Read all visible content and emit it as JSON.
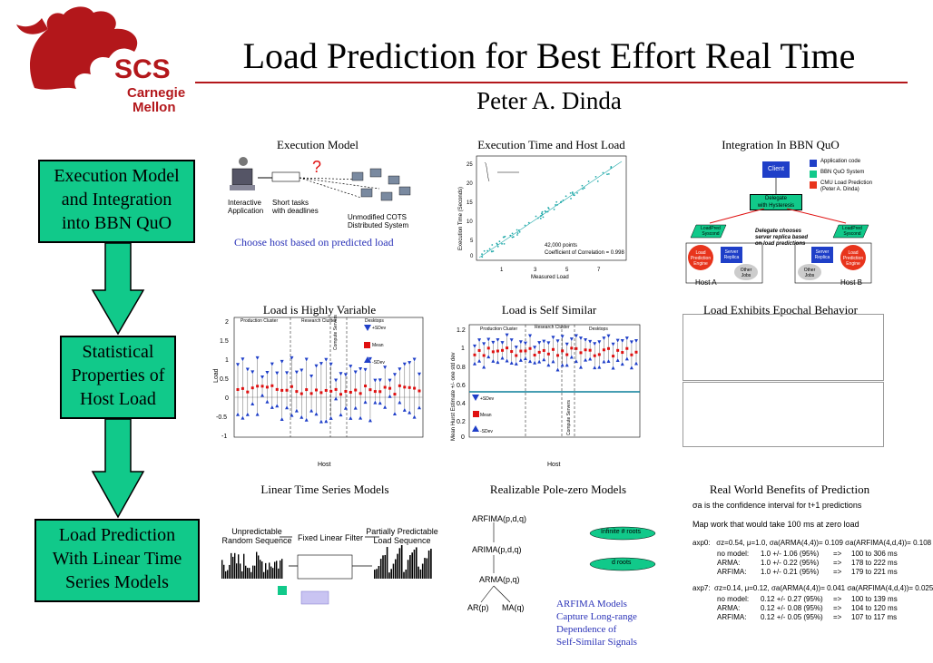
{
  "logo": {
    "org": "SCS",
    "university_line1": "Carnegie",
    "university_line2": "Mellon"
  },
  "title": "Load Prediction for Best Effort Real Time",
  "author": "Peter A. Dinda",
  "flow": [
    {
      "label_lines": [
        "Execution Model",
        "and Integration",
        "into BBN QuO"
      ]
    },
    {
      "label_lines": [
        "Statistical",
        "Properties of",
        "Host Load"
      ]
    },
    {
      "label_lines": [
        "Load Prediction",
        "With Linear Time",
        "Series Models"
      ]
    }
  ],
  "panels": {
    "execution_model": {
      "title": "Execution Model",
      "labels": [
        "Interactive",
        "Application",
        "Short tasks",
        "with deadlines",
        "Unmodified COTS",
        "Distributed System"
      ],
      "caption": "Choose host based on predicted load"
    },
    "execution_time": {
      "title": "Execution Time and Host Load",
      "ylabel": "Execution Time (Seconds)",
      "xlabel": "Measured Load",
      "yticks": [
        "25",
        "20",
        "15",
        "10",
        "5",
        "0"
      ],
      "xticks": [
        "1",
        "3",
        "5",
        "7"
      ],
      "note_line1": "42,000 points",
      "note_line2": "Coefficient of Correlation = 0.998"
    },
    "integration": {
      "title": "Integration In BBN QuO",
      "client": "Client",
      "legend": [
        "Application code",
        "BBN QuO System",
        "CMU Load Prediction",
        "(Peter A. Dinda)"
      ],
      "delegate": [
        "Delegate",
        "with Hysteresis"
      ],
      "loadpred": [
        "LoadPred",
        "Syscond"
      ],
      "engine": [
        "Load",
        "Prediction",
        "Engine"
      ],
      "replica": [
        "Server",
        "Replica"
      ],
      "other": [
        "Other",
        "Jobs"
      ],
      "host_a": "Host A",
      "host_b": "Host B",
      "delegate_note": [
        "Delegate chooses",
        "server replica based",
        "on load predictions"
      ]
    },
    "variable": {
      "title": "Load is Highly Variable",
      "ylabel": "Load",
      "xlabel": "Host",
      "yticks": [
        "2",
        "1.5",
        "1",
        "0.5",
        "0",
        "-0.5",
        "-1"
      ],
      "groups": [
        "Production Cluster",
        "Research Cluster",
        "Compute Servers",
        "Desktops"
      ],
      "legend": [
        "+SDev",
        "Mean",
        "-SDev"
      ]
    },
    "self_similar": {
      "title": "Load is Self Similar",
      "ylabel": "Mean Hurst Estimate +/- one std dev",
      "xlabel": "Host",
      "yticks": [
        "1.2",
        "1",
        "0.8",
        "0.6",
        "0.4",
        "0.2",
        "0"
      ],
      "groups": [
        "Production Cluster",
        "Research Cluster",
        "Compute Servers",
        "Desktops"
      ],
      "legend": [
        "+SDev",
        "Mean",
        "-SDev"
      ]
    },
    "epochal": {
      "title": "Load Exhibits Epochal Behavior"
    },
    "linear": {
      "title": "Linear Time Series Models",
      "unpredictable": [
        "Unpredictable",
        "Random Sequence"
      ],
      "filter": "Fixed Linear Filter",
      "predictable": [
        "Partially Predictable",
        "Load Sequence"
      ]
    },
    "polezero": {
      "title": "Realizable Pole-zero Models",
      "models": [
        "ARFIMA(p,d,q)",
        "ARIMA(p,d,q)",
        "ARMA(p,q)",
        "AR(p)",
        "MA(q)"
      ],
      "roots": [
        "Infinite # roots",
        "d roots"
      ],
      "caption": [
        "ARFIMA Models",
        "Capture Long-range",
        "Dependence of",
        "Self-Similar Signals"
      ]
    },
    "benefits": {
      "title": "Real World Benefits of Prediction",
      "line1": "σa is the confidence interval for t+1 predictions",
      "line2": "Map work that would take 100 ms at zero load",
      "axp0": {
        "head": "axp0:   σz=0.54, μ=1.0, σa(ARMA(4,4))= 0.109 σa(ARFIMA(4,d,4))= 0.108",
        "rows": [
          [
            "no model:",
            "1.0 +/- 1.06 (95%)",
            "=>",
            "100 to 306 ms"
          ],
          [
            "ARMA:",
            "1.0 +/- 0.22 (95%)",
            "=>",
            "178 to 222 ms"
          ],
          [
            "ARFIMA:",
            "1.0 +/- 0.21 (95%)",
            "=>",
            "179 to 221 ms"
          ]
        ]
      },
      "axp7": {
        "head": "axp7:  σz=0.14, μ=0.12, σa(ARMA(4,4))= 0.041 σa(ARFIMA(4,d,4))= 0.025",
        "rows": [
          [
            "no model:",
            "0.12 +/- 0.27 (95%)",
            "=>",
            "100 to 139 ms"
          ],
          [
            "ARMA:",
            "0.12 +/- 0.08 (95%)",
            "=>",
            "104 to 120 ms"
          ],
          [
            "ARFIMA:",
            "0.12 +/- 0.05 (95%)",
            "=>",
            "107 to 117 ms"
          ]
        ]
      }
    }
  },
  "colors": {
    "accent_red": "#b3171b",
    "box_green": "#11c98a",
    "link_blue": "#2b33b8",
    "series_blue": "#1f3fc8",
    "series_red": "#e01010"
  }
}
